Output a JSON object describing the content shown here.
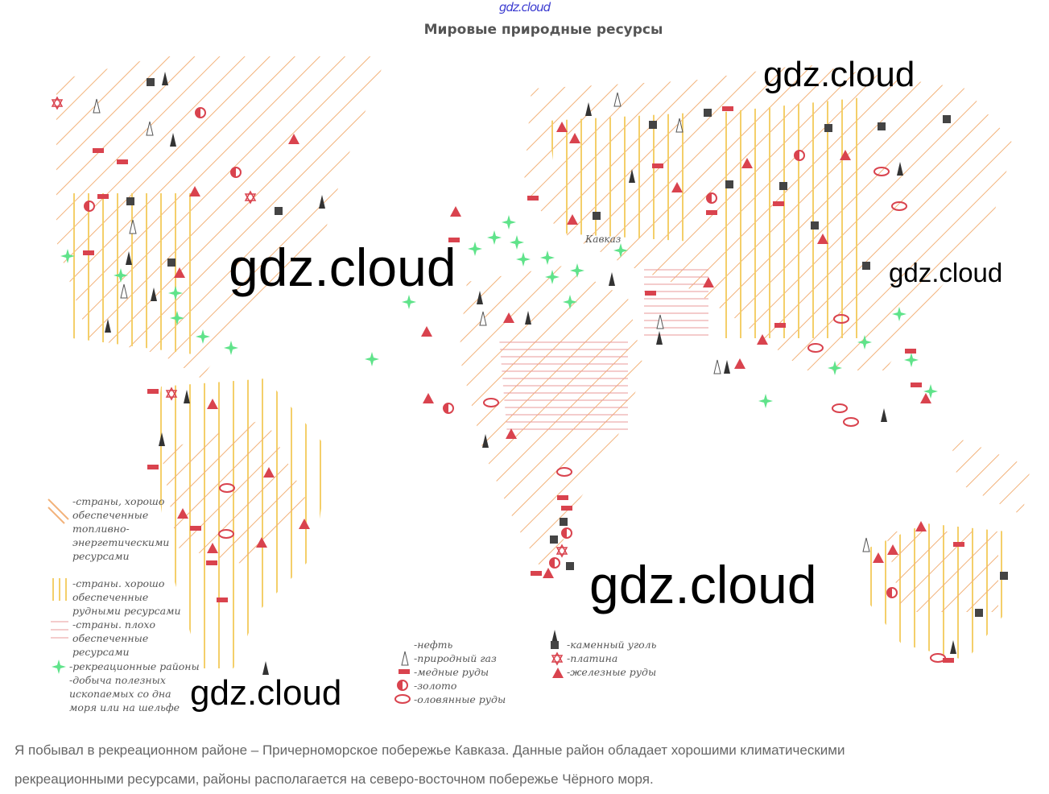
{
  "header": {
    "site": "gdz.cloud",
    "title": "Мировые природные ресурсы"
  },
  "watermarks": [
    "gdz.cloud",
    "gdz.cloud",
    "gdz.cloud",
    "gdz.cloud",
    "gdz.cloud"
  ],
  "map": {
    "labels": [
      "Кавказ"
    ]
  },
  "legend": {
    "areas": [
      "-страны, хорошо обеспеченные топливно-энергетическими ресурсами",
      "-страны. хорошо обеспеченные рудными ресурсами",
      "-страны. плохо обеспеченные ресурсами",
      "-рекреационные районы",
      "-добыча полезных ископаемых со дна моря или на шельфе"
    ],
    "symbols": [
      "-нефть",
      "-природный газ",
      "-медные руды",
      "-золото",
      "-оловянные руды",
      "-каменный уголь",
      "-платина",
      "-железные руды"
    ]
  },
  "text": {
    "lines": [
      "Я побывал в рекреационном районе – Причерноморское побережье Кавказа. Данные район обладает хорошими климатическими",
      "рекреационными ресурсами, районы располагается на северо-восточном побережье Чёрного моря."
    ]
  }
}
